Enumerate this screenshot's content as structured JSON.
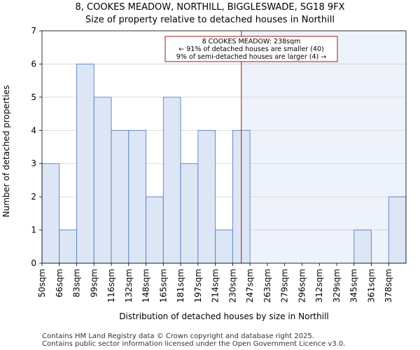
{
  "chart_data": {
    "type": "bar",
    "title": "8, COOKES MEADOW, NORTHILL, BIGGLESWADE, SG18 9FX",
    "subtitle": "Size of property relative to detached houses in Northill",
    "xlabel": "Distribution of detached houses by size in Northill",
    "ylabel": "Number of detached properties",
    "categories": [
      "50sqm",
      "66sqm",
      "83sqm",
      "99sqm",
      "116sqm",
      "132sqm",
      "148sqm",
      "165sqm",
      "181sqm",
      "197sqm",
      "214sqm",
      "230sqm",
      "247sqm",
      "263sqm",
      "279sqm",
      "296sqm",
      "312sqm",
      "329sqm",
      "345sqm",
      "361sqm",
      "378sqm"
    ],
    "values": [
      3,
      1,
      6,
      5,
      4,
      4,
      2,
      5,
      3,
      4,
      1,
      4,
      0,
      0,
      0,
      0,
      0,
      0,
      1,
      0,
      2
    ],
    "yticks": [
      "0",
      "1",
      "2",
      "3",
      "4",
      "5",
      "6",
      "7"
    ],
    "ylim": [
      0,
      7
    ],
    "grid": true,
    "marker_value": 238,
    "marker_bin_position": 11.5,
    "annotation": {
      "line1": "8 COOKES MEADOW: 238sqm",
      "line2": "← 91% of detached houses are smaller (40)",
      "line3": "9% of semi-detached houses are larger (4) →"
    },
    "colors": {
      "bar_fill": "#dce6f4",
      "bar_edge": "#5a7fc4",
      "highlight_bg": "#eef2fb",
      "marker": "#9b1c1c",
      "grid": "#d0d0d0"
    }
  },
  "footer": {
    "line1": "Contains HM Land Registry data © Crown copyright and database right 2025.",
    "line2": "Contains public sector information licensed under the Open Government Licence v3.0."
  }
}
